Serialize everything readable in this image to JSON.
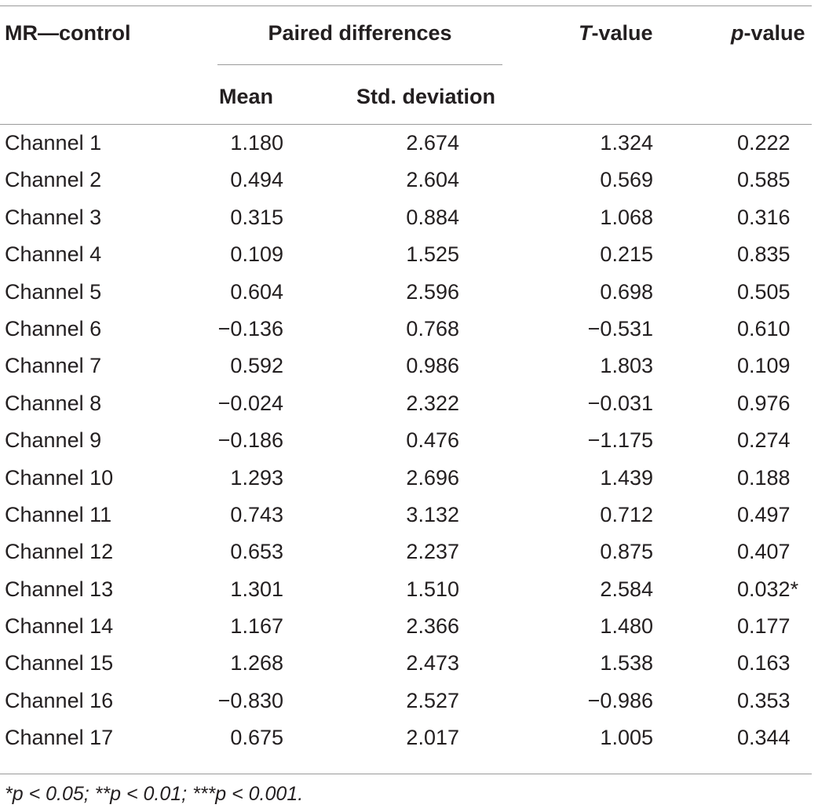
{
  "header": {
    "first_col": "MR—control",
    "group": "Paired differences",
    "t_letter": "T",
    "t_suffix": "-value",
    "p_letter": "p",
    "p_suffix": "-value",
    "mean": "Mean",
    "sd": "Std. deviation"
  },
  "rows": [
    {
      "name": "Channel 1",
      "mean": "1.180",
      "sd": "2.674",
      "t": "1.324",
      "p": "0.222"
    },
    {
      "name": "Channel 2",
      "mean": "0.494",
      "sd": "2.604",
      "t": "0.569",
      "p": "0.585"
    },
    {
      "name": "Channel 3",
      "mean": "0.315",
      "sd": "0.884",
      "t": "1.068",
      "p": "0.316"
    },
    {
      "name": "Channel 4",
      "mean": "0.109",
      "sd": "1.525",
      "t": "0.215",
      "p": "0.835"
    },
    {
      "name": "Channel 5",
      "mean": "0.604",
      "sd": "2.596",
      "t": "0.698",
      "p": "0.505"
    },
    {
      "name": "Channel 6",
      "mean": "−0.136",
      "sd": "0.768",
      "t": "−0.531",
      "p": "0.610"
    },
    {
      "name": "Channel 7",
      "mean": "0.592",
      "sd": "0.986",
      "t": "1.803",
      "p": "0.109"
    },
    {
      "name": "Channel 8",
      "mean": "−0.024",
      "sd": "2.322",
      "t": "−0.031",
      "p": "0.976"
    },
    {
      "name": "Channel 9",
      "mean": "−0.186",
      "sd": "0.476",
      "t": "−1.175",
      "p": "0.274"
    },
    {
      "name": "Channel 10",
      "mean": "1.293",
      "sd": "2.696",
      "t": "1.439",
      "p": "0.188"
    },
    {
      "name": "Channel 11",
      "mean": "0.743",
      "sd": "3.132",
      "t": "0.712",
      "p": "0.497"
    },
    {
      "name": "Channel 12",
      "mean": "0.653",
      "sd": "2.237",
      "t": "0.875",
      "p": "0.407"
    },
    {
      "name": "Channel 13",
      "mean": "1.301",
      "sd": "1.510",
      "t": "2.584",
      "p": "0.032*"
    },
    {
      "name": "Channel 14",
      "mean": "1.167",
      "sd": "2.366",
      "t": "1.480",
      "p": "0.177"
    },
    {
      "name": "Channel 15",
      "mean": "1.268",
      "sd": "2.473",
      "t": "1.538",
      "p": "0.163"
    },
    {
      "name": "Channel 16",
      "mean": "−0.830",
      "sd": "2.527",
      "t": "−0.986",
      "p": "0.353"
    },
    {
      "name": "Channel 17",
      "mean": "0.675",
      "sd": "2.017",
      "t": "1.005",
      "p": "0.344"
    }
  ],
  "footnote": "*p < 0.05; **p < 0.01; ***p < 0.001."
}
